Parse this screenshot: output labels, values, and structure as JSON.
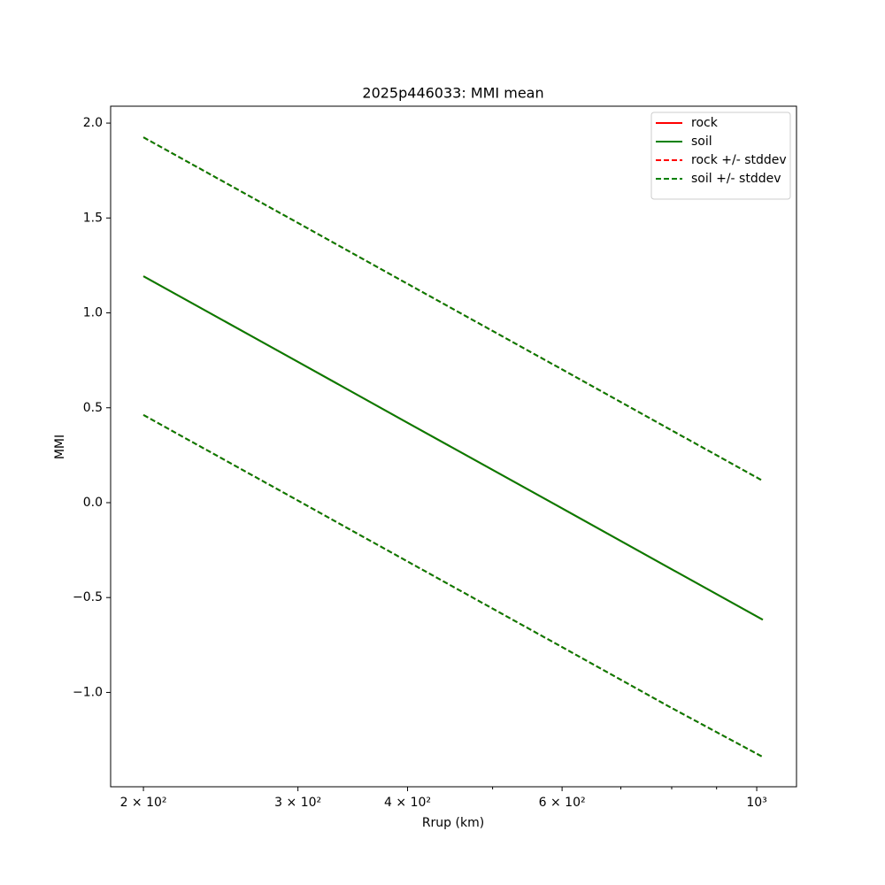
{
  "chart_data": {
    "type": "line",
    "title": "2025p446033: MMI mean",
    "xlabel": "Rrup (km)",
    "ylabel": "MMI",
    "xscale": "log",
    "xlim": [
      183.5,
      1110
    ],
    "ylim": [
      -1.497,
      2.089
    ],
    "xticks": [
      {
        "value": 200,
        "label": "2 × 10²"
      },
      {
        "value": 300,
        "label": "3 × 10²"
      },
      {
        "value": 400,
        "label": "4 × 10²"
      },
      {
        "value": 600,
        "label": "6 × 10²"
      },
      {
        "value": 1000,
        "label": "10³"
      }
    ],
    "xminorticks": [
      500,
      700,
      800,
      900
    ],
    "yticks": [
      {
        "value": -1.0,
        "label": "−1.0"
      },
      {
        "value": -0.5,
        "label": "−0.5"
      },
      {
        "value": 0.0,
        "label": "0.0"
      },
      {
        "value": 0.5,
        "label": "0.5"
      },
      {
        "value": 1.0,
        "label": "1.0"
      },
      {
        "value": 1.5,
        "label": "1.5"
      },
      {
        "value": 2.0,
        "label": "2.0"
      }
    ],
    "legend": "upper right",
    "x": [
      200,
      300,
      400,
      600,
      800,
      1016
    ],
    "series": [
      {
        "name": "rock",
        "color": "#ff0000",
        "dashed": false,
        "values": [
          1.193,
          0.742,
          0.421,
          -0.03,
          -0.351,
          -0.617
        ]
      },
      {
        "name": "soil",
        "color": "#008000",
        "dashed": false,
        "values": [
          1.193,
          0.742,
          0.421,
          -0.03,
          -0.351,
          -0.617
        ]
      },
      {
        "name": "rock +/- stddev",
        "color": "#ff0000",
        "dashed": true,
        "upper": [
          1.925,
          1.474,
          1.153,
          0.702,
          0.381,
          0.115
        ],
        "lower": [
          0.462,
          0.011,
          -0.31,
          -0.761,
          -1.082,
          -1.34
        ]
      },
      {
        "name": "soil +/- stddev",
        "color": "#008000",
        "dashed": true,
        "upper": [
          1.925,
          1.474,
          1.153,
          0.702,
          0.381,
          0.115
        ],
        "lower": [
          0.462,
          0.011,
          -0.31,
          -0.761,
          -1.082,
          -1.34
        ]
      }
    ]
  }
}
